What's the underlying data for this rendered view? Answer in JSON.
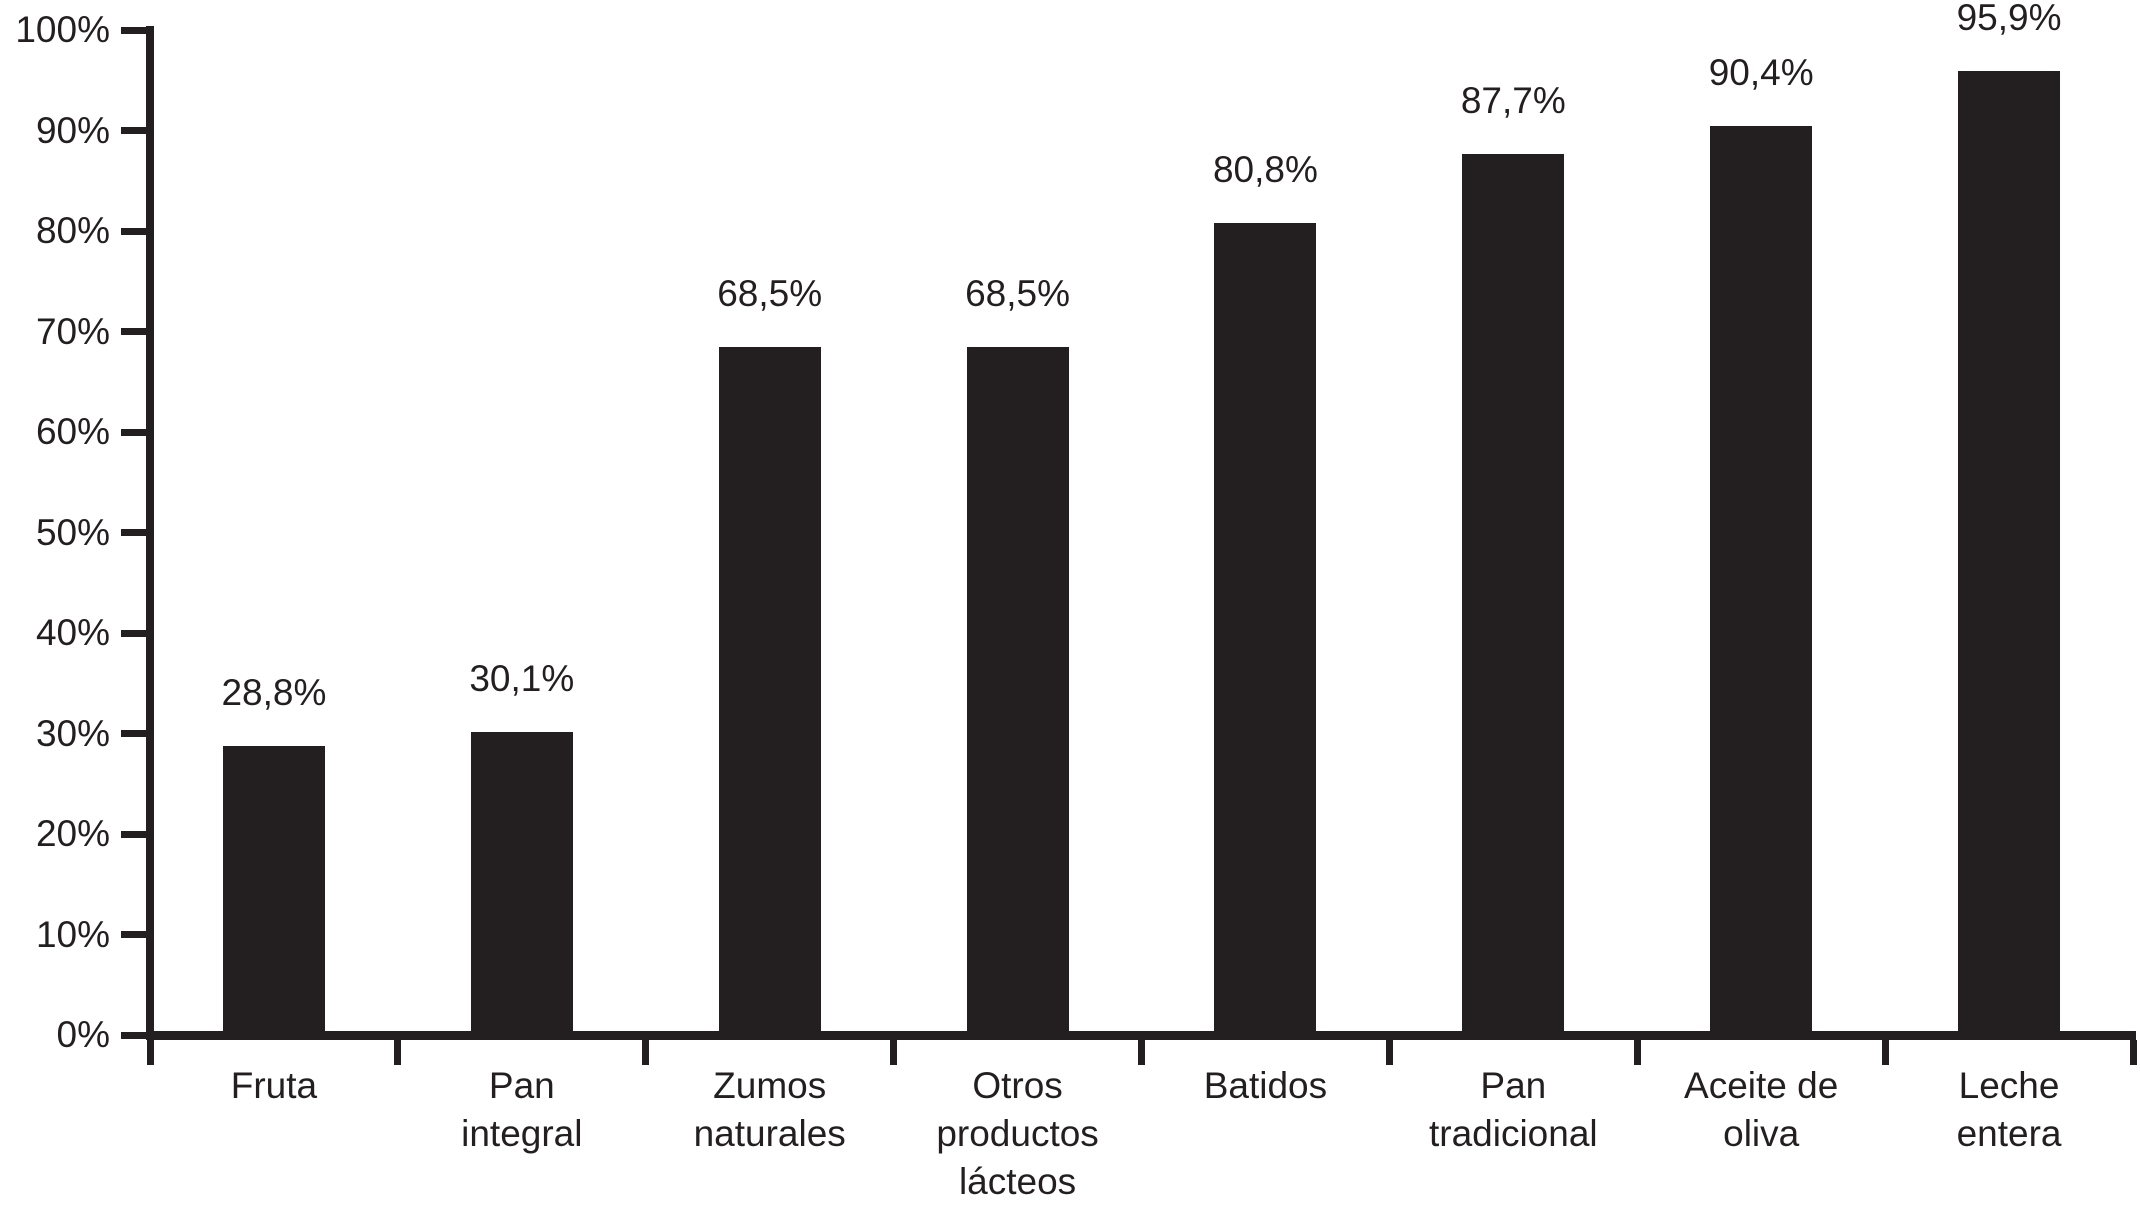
{
  "chart_data": {
    "type": "bar",
    "title": "",
    "xlabel": "",
    "ylabel": "",
    "categories": [
      "Fruta",
      "Pan integral",
      "Zumos naturales",
      "Otros productos lácteos",
      "Batidos",
      "Pan tradicional",
      "Aceite de oliva",
      "Leche entera"
    ],
    "category_label_lines": [
      [
        "Fruta"
      ],
      [
        "Pan",
        "integral"
      ],
      [
        "Zumos",
        "naturales"
      ],
      [
        "Otros",
        "productos",
        "lácteos"
      ],
      [
        "Batidos"
      ],
      [
        "Pan",
        "tradicional"
      ],
      [
        "Aceite de",
        "oliva"
      ],
      [
        "Leche",
        "entera"
      ]
    ],
    "values": [
      28.8,
      30.1,
      68.5,
      68.5,
      80.8,
      87.7,
      90.4,
      95.9
    ],
    "value_labels": [
      "28,8%",
      "30,1%",
      "68,5%",
      "68,5%",
      "80,8%",
      "87,7%",
      "90,4%",
      "95,9%"
    ],
    "y_axis": {
      "ticks": [
        0,
        10,
        20,
        30,
        40,
        50,
        60,
        70,
        80,
        90,
        100
      ],
      "tick_labels": [
        "0%",
        "10%",
        "20%",
        "30%",
        "40%",
        "50%",
        "60%",
        "70%",
        "80%",
        "90%",
        "100%"
      ],
      "ylim": [
        0,
        100
      ]
    },
    "bar_color": "#231f20",
    "text_color": "#231f20",
    "background": "#ffffff",
    "grid": false,
    "legend": null
  }
}
